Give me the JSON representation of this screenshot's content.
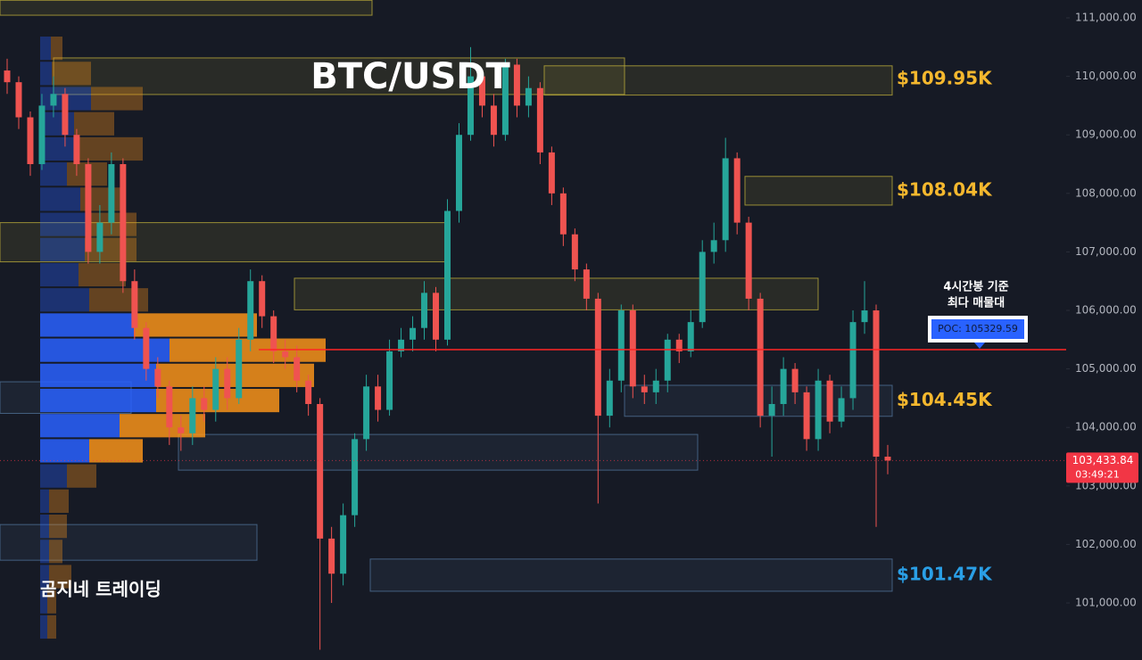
{
  "chart_data": {
    "type": "candlestick",
    "title": "BTC/USDT",
    "watermark": "곰지네 트레이딩",
    "ylim": [
      100025,
      111305
    ],
    "yticks": [
      {
        "value": 101000,
        "label": "101,000.00"
      },
      {
        "value": 102000,
        "label": "102,000.00"
      },
      {
        "value": 103000,
        "label": "103,000.00"
      },
      {
        "value": 104000,
        "label": "104,000.00"
      },
      {
        "value": 105000,
        "label": "105,000.00"
      },
      {
        "value": 106000,
        "label": "106,000.00"
      },
      {
        "value": 107000,
        "label": "107,000.00"
      },
      {
        "value": 108000,
        "label": "108,000.00"
      },
      {
        "value": 109000,
        "label": "109,000.00"
      },
      {
        "value": 110000,
        "label": "110,000.00"
      },
      {
        "value": 111000,
        "label": "111,000.00"
      }
    ],
    "grid": false,
    "up_color": "#26a69a",
    "down_color": "#ef5350",
    "open": [
      110100,
      109900,
      109300,
      108500,
      109500,
      109700,
      109000,
      108500,
      107000,
      107500,
      108500,
      106500,
      105700,
      105000,
      104700,
      104000,
      103900,
      104500,
      104300,
      105000,
      104500,
      105500,
      106500,
      105900,
      105300,
      105200,
      104800,
      104400,
      102100,
      101500,
      102500,
      103800,
      104700,
      104300,
      105300,
      105500,
      105700,
      106300,
      105500,
      107700,
      109000,
      110000,
      109500,
      109000,
      110200,
      109500,
      109800,
      108700,
      108000,
      107300,
      106700,
      106200,
      104200,
      104800,
      106000,
      104700,
      104600,
      104800,
      105500,
      105300,
      105800,
      107000,
      107200,
      108600,
      107500,
      106200,
      104200,
      104400,
      105000,
      104600,
      103800,
      104800,
      104100,
      104500,
      105800,
      106000,
      103500
    ],
    "high": [
      110300,
      110000,
      109400,
      109700,
      110000,
      109800,
      109100,
      108600,
      107800,
      108700,
      108600,
      106700,
      105800,
      105200,
      104800,
      104200,
      104700,
      104700,
      105200,
      105200,
      105700,
      106700,
      106600,
      106000,
      105500,
      105400,
      104900,
      104500,
      102300,
      102700,
      103900,
      104900,
      104900,
      105500,
      105700,
      105900,
      106500,
      106400,
      107900,
      109200,
      110500,
      110100,
      109700,
      110300,
      110300,
      110000,
      109900,
      108800,
      108100,
      107400,
      106800,
      106300,
      105000,
      106100,
      106100,
      104900,
      105000,
      105600,
      105600,
      106000,
      107200,
      107500,
      108950,
      108700,
      107600,
      106300,
      104700,
      105200,
      105100,
      104700,
      105000,
      104900,
      104700,
      106000,
      106500,
      106100,
      103700
    ],
    "low": [
      109700,
      109100,
      108300,
      108400,
      109300,
      108800,
      108300,
      106800,
      106800,
      107300,
      106300,
      105500,
      104800,
      104500,
      103700,
      103600,
      103700,
      104100,
      104100,
      104300,
      104400,
      105300,
      105700,
      105100,
      105000,
      104600,
      104200,
      100200,
      101000,
      101300,
      102300,
      103600,
      104100,
      104200,
      105200,
      105300,
      105500,
      105300,
      105400,
      107500,
      108900,
      109300,
      108800,
      108900,
      109300,
      109300,
      108500,
      107800,
      107100,
      106500,
      106000,
      102700,
      104000,
      104600,
      104500,
      104400,
      104400,
      104600,
      105100,
      105200,
      105700,
      106800,
      107000,
      107300,
      106000,
      104000,
      103500,
      104200,
      104400,
      103600,
      103600,
      103900,
      104000,
      104300,
      105600,
      102300,
      103200
    ],
    "close": [
      109900,
      109300,
      108500,
      109500,
      109700,
      109000,
      108500,
      107000,
      107500,
      108500,
      106500,
      105700,
      105000,
      104700,
      104000,
      103900,
      104500,
      104300,
      105000,
      104500,
      105500,
      106500,
      105900,
      105300,
      105200,
      104800,
      104400,
      102100,
      101500,
      102500,
      103800,
      104700,
      104300,
      105300,
      105500,
      105700,
      106300,
      105500,
      107700,
      109000,
      110000,
      109500,
      109000,
      110200,
      109500,
      109800,
      108700,
      108000,
      107300,
      106700,
      106200,
      104200,
      104800,
      106000,
      104700,
      104600,
      104800,
      105500,
      105300,
      105800,
      107000,
      107200,
      108600,
      107500,
      106200,
      104200,
      104400,
      105000,
      104600,
      103800,
      104800,
      104100,
      104500,
      105800,
      106000,
      103500,
      103433.84
    ],
    "zones": [
      {
        "low": 111045,
        "high": 111300,
        "color": "#b8a93a"
      },
      {
        "low": 109690,
        "high": 110315,
        "color": "#b8a93a"
      },
      {
        "low": 109680,
        "high": 110180,
        "color": "#b8a93a"
      },
      {
        "low": 107800,
        "high": 108290,
        "color": "#b8a93a"
      },
      {
        "low": 106830,
        "high": 107500,
        "color": "#b8a93a"
      },
      {
        "low": 106010,
        "high": 106550,
        "color": "#b8a93a"
      },
      {
        "low": 104190,
        "high": 104720,
        "color": "#4f7196"
      },
      {
        "low": 104240,
        "high": 104780,
        "color": "#4f7196"
      },
      {
        "low": 103270,
        "high": 103880,
        "color": "#4f7196"
      },
      {
        "low": 101730,
        "high": 102340,
        "color": "#4f7196"
      },
      {
        "low": 101200,
        "high": 101750,
        "color": "#4f7196"
      }
    ],
    "zone_labels": [
      {
        "value": 109950,
        "label": "$109.95K",
        "color": "#f5b82e"
      },
      {
        "value": 108040,
        "label": "$108.04K",
        "color": "#f5b82e"
      },
      {
        "value": 104450,
        "label": "$104.45K",
        "color": "#f5b82e"
      },
      {
        "value": 101470,
        "label": "$101.47K",
        "color": "#2a9fe6"
      }
    ],
    "poc": {
      "value": 105329.59,
      "label": "POC: 105329.59",
      "color": "#ff2424",
      "note": [
        "4시간봉 기준",
        "최다 매물대"
      ]
    },
    "current_price": {
      "value": 103433.84,
      "label": "103,433.84",
      "countdown": "03:49:21",
      "color": "#f23645"
    },
    "volume_profile": {
      "levels": [
        110480,
        110050,
        109620,
        109190,
        108760,
        108330,
        107900,
        107470,
        107040,
        106610,
        106180,
        105750,
        105320,
        104890,
        104460,
        104030,
        103600,
        103170,
        102740,
        102310,
        101880,
        101450,
        101020,
        100590
      ],
      "buy": [
        12,
        13,
        57,
        38,
        38,
        30,
        45,
        55,
        50,
        43,
        55,
        105,
        145,
        130,
        130,
        89,
        55,
        30,
        10,
        10,
        10,
        10,
        8,
        8
      ],
      "sell": [
        13,
        44,
        58,
        45,
        77,
        45,
        50,
        53,
        58,
        53,
        66,
        138,
        175,
        177,
        138,
        96,
        60,
        33,
        22,
        20,
        15,
        25,
        10,
        10
      ],
      "buy_color": "#2962ff",
      "sell_color": "#f7931a"
    }
  }
}
